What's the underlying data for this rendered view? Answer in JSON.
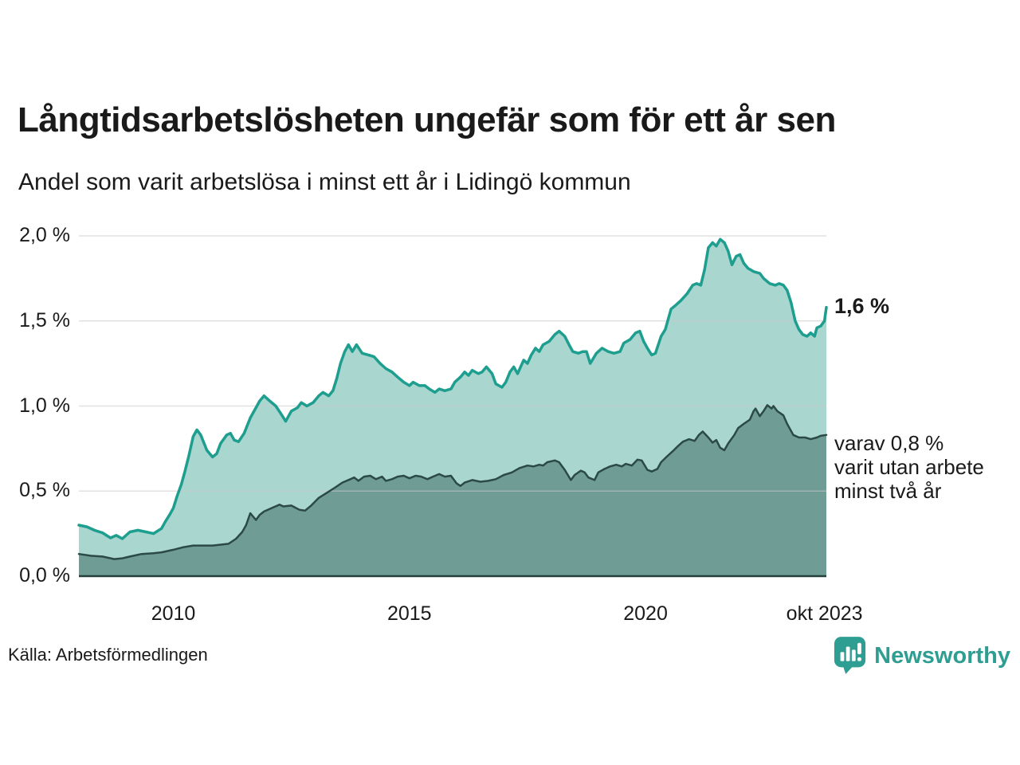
{
  "header": {
    "title": "Långtidsarbetslösheten ungefär som för ett år sen",
    "subtitle": "Andel som varit arbetslösa i minst ett år i Lidingö kommun"
  },
  "annotations": {
    "total_label": "1,6 %",
    "two_plus_lines": [
      "varav 0,8 %",
      "varit utan arbete",
      "minst två år"
    ]
  },
  "footer": {
    "source": "Källa: Arbetsförmedlingen",
    "brand": "Newsworthy"
  },
  "colors": {
    "text": "#1a1a1a",
    "grid": "#c9c9c9",
    "baseline": "#24403b",
    "brand_teal": "#2e9d92",
    "total_stroke": "#1d9e8e",
    "total_fill": "#a9d6ce",
    "twoplus_stroke": "#2b4a45",
    "twoplus_fill": "#6f9c95"
  },
  "chart_data": {
    "type": "area",
    "title": "Långtidsarbetslösheten ungefär som för ett år sen",
    "subtitle": "Andel som varit arbetslösa i minst ett år i Lidingö kommun",
    "source": "Källa: Arbetsförmedlingen",
    "x_domain": [
      2008.0,
      2023.83
    ],
    "y_domain": [
      0,
      2.0
    ],
    "grid": true,
    "legend_position": "right-annotations",
    "x_ticks": [
      {
        "t": 2010,
        "label": "2010"
      },
      {
        "t": 2015,
        "label": "2015"
      },
      {
        "t": 2020,
        "label": "2020"
      },
      {
        "t": 2023.79,
        "label": "okt 2023"
      }
    ],
    "y_ticks": [
      {
        "v": 0.0,
        "label": "0,0 %"
      },
      {
        "v": 0.5,
        "label": "0,5 %"
      },
      {
        "v": 1.0,
        "label": "1,0 %"
      },
      {
        "v": 1.5,
        "label": "1,5 %"
      },
      {
        "v": 2.0,
        "label": "2,0 %"
      }
    ],
    "series": [
      {
        "name": "Arbetslösa minst ett år",
        "end_label": "1,6 %",
        "end_value": 1.6,
        "points": [
          [
            2008.0,
            0.3
          ],
          [
            2008.17,
            0.29
          ],
          [
            2008.33,
            0.27
          ],
          [
            2008.5,
            0.255
          ],
          [
            2008.67,
            0.225
          ],
          [
            2008.79,
            0.24
          ],
          [
            2008.92,
            0.22
          ],
          [
            2009.08,
            0.26
          ],
          [
            2009.25,
            0.27
          ],
          [
            2009.42,
            0.26
          ],
          [
            2009.58,
            0.25
          ],
          [
            2009.75,
            0.28
          ],
          [
            2009.83,
            0.32
          ],
          [
            2009.92,
            0.36
          ],
          [
            2010.0,
            0.4
          ],
          [
            2010.08,
            0.47
          ],
          [
            2010.17,
            0.54
          ],
          [
            2010.25,
            0.62
          ],
          [
            2010.33,
            0.71
          ],
          [
            2010.42,
            0.82
          ],
          [
            2010.5,
            0.86
          ],
          [
            2010.58,
            0.83
          ],
          [
            2010.71,
            0.74
          ],
          [
            2010.83,
            0.7
          ],
          [
            2010.92,
            0.72
          ],
          [
            2011.0,
            0.78
          ],
          [
            2011.13,
            0.83
          ],
          [
            2011.21,
            0.84
          ],
          [
            2011.29,
            0.8
          ],
          [
            2011.38,
            0.79
          ],
          [
            2011.5,
            0.84
          ],
          [
            2011.63,
            0.93
          ],
          [
            2011.75,
            0.99
          ],
          [
            2011.83,
            1.03
          ],
          [
            2011.92,
            1.06
          ],
          [
            2012.04,
            1.03
          ],
          [
            2012.17,
            1.0
          ],
          [
            2012.29,
            0.95
          ],
          [
            2012.38,
            0.91
          ],
          [
            2012.5,
            0.97
          ],
          [
            2012.63,
            0.99
          ],
          [
            2012.71,
            1.02
          ],
          [
            2012.83,
            1.0
          ],
          [
            2012.96,
            1.02
          ],
          [
            2013.08,
            1.06
          ],
          [
            2013.17,
            1.08
          ],
          [
            2013.29,
            1.06
          ],
          [
            2013.38,
            1.09
          ],
          [
            2013.46,
            1.16
          ],
          [
            2013.54,
            1.25
          ],
          [
            2013.63,
            1.32
          ],
          [
            2013.71,
            1.36
          ],
          [
            2013.79,
            1.32
          ],
          [
            2013.88,
            1.36
          ],
          [
            2014.0,
            1.31
          ],
          [
            2014.13,
            1.3
          ],
          [
            2014.25,
            1.29
          ],
          [
            2014.38,
            1.25
          ],
          [
            2014.5,
            1.22
          ],
          [
            2014.63,
            1.2
          ],
          [
            2014.75,
            1.17
          ],
          [
            2014.88,
            1.14
          ],
          [
            2015.0,
            1.12
          ],
          [
            2015.08,
            1.14
          ],
          [
            2015.21,
            1.12
          ],
          [
            2015.33,
            1.12
          ],
          [
            2015.42,
            1.1
          ],
          [
            2015.54,
            1.08
          ],
          [
            2015.63,
            1.1
          ],
          [
            2015.75,
            1.09
          ],
          [
            2015.88,
            1.1
          ],
          [
            2015.96,
            1.14
          ],
          [
            2016.08,
            1.17
          ],
          [
            2016.17,
            1.2
          ],
          [
            2016.25,
            1.18
          ],
          [
            2016.33,
            1.21
          ],
          [
            2016.46,
            1.19
          ],
          [
            2016.54,
            1.2
          ],
          [
            2016.63,
            1.23
          ],
          [
            2016.75,
            1.19
          ],
          [
            2016.83,
            1.13
          ],
          [
            2016.96,
            1.11
          ],
          [
            2017.04,
            1.14
          ],
          [
            2017.13,
            1.2
          ],
          [
            2017.21,
            1.23
          ],
          [
            2017.29,
            1.19
          ],
          [
            2017.42,
            1.27
          ],
          [
            2017.5,
            1.25
          ],
          [
            2017.58,
            1.3
          ],
          [
            2017.67,
            1.34
          ],
          [
            2017.75,
            1.32
          ],
          [
            2017.83,
            1.36
          ],
          [
            2017.96,
            1.38
          ],
          [
            2018.08,
            1.42
          ],
          [
            2018.17,
            1.44
          ],
          [
            2018.29,
            1.41
          ],
          [
            2018.38,
            1.36
          ],
          [
            2018.46,
            1.32
          ],
          [
            2018.58,
            1.31
          ],
          [
            2018.67,
            1.32
          ],
          [
            2018.75,
            1.32
          ],
          [
            2018.83,
            1.25
          ],
          [
            2018.96,
            1.31
          ],
          [
            2019.08,
            1.34
          ],
          [
            2019.21,
            1.32
          ],
          [
            2019.33,
            1.31
          ],
          [
            2019.46,
            1.32
          ],
          [
            2019.54,
            1.37
          ],
          [
            2019.67,
            1.39
          ],
          [
            2019.79,
            1.43
          ],
          [
            2019.88,
            1.44
          ],
          [
            2019.96,
            1.38
          ],
          [
            2020.04,
            1.34
          ],
          [
            2020.13,
            1.3
          ],
          [
            2020.21,
            1.31
          ],
          [
            2020.33,
            1.41
          ],
          [
            2020.42,
            1.45
          ],
          [
            2020.54,
            1.57
          ],
          [
            2020.63,
            1.59
          ],
          [
            2020.75,
            1.62
          ],
          [
            2020.88,
            1.66
          ],
          [
            2021.0,
            1.71
          ],
          [
            2021.08,
            1.72
          ],
          [
            2021.17,
            1.71
          ],
          [
            2021.25,
            1.8
          ],
          [
            2021.33,
            1.93
          ],
          [
            2021.42,
            1.96
          ],
          [
            2021.5,
            1.94
          ],
          [
            2021.58,
            1.98
          ],
          [
            2021.67,
            1.96
          ],
          [
            2021.75,
            1.91
          ],
          [
            2021.83,
            1.83
          ],
          [
            2021.92,
            1.88
          ],
          [
            2022.0,
            1.89
          ],
          [
            2022.08,
            1.84
          ],
          [
            2022.17,
            1.81
          ],
          [
            2022.29,
            1.79
          ],
          [
            2022.42,
            1.78
          ],
          [
            2022.5,
            1.75
          ],
          [
            2022.63,
            1.72
          ],
          [
            2022.75,
            1.71
          ],
          [
            2022.83,
            1.72
          ],
          [
            2022.92,
            1.71
          ],
          [
            2023.0,
            1.68
          ],
          [
            2023.08,
            1.61
          ],
          [
            2023.17,
            1.5
          ],
          [
            2023.25,
            1.45
          ],
          [
            2023.33,
            1.42
          ],
          [
            2023.42,
            1.41
          ],
          [
            2023.5,
            1.43
          ],
          [
            2023.58,
            1.41
          ],
          [
            2023.63,
            1.46
          ],
          [
            2023.71,
            1.47
          ],
          [
            2023.79,
            1.5
          ],
          [
            2023.83,
            1.58
          ]
        ]
      },
      {
        "name": "varav arbetslösa minst två år",
        "end_label": "varav 0,8 % varit utan arbete minst två år",
        "end_value": 0.8,
        "points": [
          [
            2008.0,
            0.13
          ],
          [
            2008.25,
            0.12
          ],
          [
            2008.5,
            0.115
          ],
          [
            2008.75,
            0.1
          ],
          [
            2008.92,
            0.105
          ],
          [
            2009.08,
            0.115
          ],
          [
            2009.33,
            0.13
          ],
          [
            2009.58,
            0.135
          ],
          [
            2009.75,
            0.14
          ],
          [
            2010.0,
            0.155
          ],
          [
            2010.21,
            0.17
          ],
          [
            2010.42,
            0.18
          ],
          [
            2010.63,
            0.18
          ],
          [
            2010.83,
            0.18
          ],
          [
            2011.0,
            0.185
          ],
          [
            2011.17,
            0.19
          ],
          [
            2011.33,
            0.22
          ],
          [
            2011.46,
            0.26
          ],
          [
            2011.54,
            0.3
          ],
          [
            2011.63,
            0.37
          ],
          [
            2011.75,
            0.33
          ],
          [
            2011.83,
            0.36
          ],
          [
            2011.92,
            0.38
          ],
          [
            2012.08,
            0.4
          ],
          [
            2012.25,
            0.42
          ],
          [
            2012.33,
            0.41
          ],
          [
            2012.5,
            0.415
          ],
          [
            2012.67,
            0.39
          ],
          [
            2012.79,
            0.385
          ],
          [
            2012.92,
            0.415
          ],
          [
            2013.08,
            0.46
          ],
          [
            2013.25,
            0.49
          ],
          [
            2013.42,
            0.52
          ],
          [
            2013.58,
            0.55
          ],
          [
            2013.75,
            0.57
          ],
          [
            2013.83,
            0.58
          ],
          [
            2013.92,
            0.56
          ],
          [
            2014.04,
            0.585
          ],
          [
            2014.17,
            0.59
          ],
          [
            2014.29,
            0.57
          ],
          [
            2014.42,
            0.585
          ],
          [
            2014.5,
            0.56
          ],
          [
            2014.63,
            0.57
          ],
          [
            2014.75,
            0.585
          ],
          [
            2014.88,
            0.59
          ],
          [
            2015.0,
            0.575
          ],
          [
            2015.13,
            0.59
          ],
          [
            2015.25,
            0.585
          ],
          [
            2015.38,
            0.57
          ],
          [
            2015.5,
            0.585
          ],
          [
            2015.63,
            0.6
          ],
          [
            2015.75,
            0.585
          ],
          [
            2015.88,
            0.59
          ],
          [
            2016.0,
            0.545
          ],
          [
            2016.08,
            0.53
          ],
          [
            2016.17,
            0.55
          ],
          [
            2016.33,
            0.565
          ],
          [
            2016.5,
            0.555
          ],
          [
            2016.67,
            0.56
          ],
          [
            2016.83,
            0.57
          ],
          [
            2017.0,
            0.595
          ],
          [
            2017.17,
            0.61
          ],
          [
            2017.33,
            0.635
          ],
          [
            2017.5,
            0.65
          ],
          [
            2017.63,
            0.645
          ],
          [
            2017.75,
            0.655
          ],
          [
            2017.83,
            0.65
          ],
          [
            2017.92,
            0.67
          ],
          [
            2018.08,
            0.68
          ],
          [
            2018.17,
            0.67
          ],
          [
            2018.29,
            0.625
          ],
          [
            2018.42,
            0.565
          ],
          [
            2018.5,
            0.595
          ],
          [
            2018.63,
            0.62
          ],
          [
            2018.71,
            0.61
          ],
          [
            2018.79,
            0.58
          ],
          [
            2018.92,
            0.565
          ],
          [
            2019.0,
            0.61
          ],
          [
            2019.13,
            0.63
          ],
          [
            2019.25,
            0.645
          ],
          [
            2019.38,
            0.655
          ],
          [
            2019.5,
            0.645
          ],
          [
            2019.58,
            0.66
          ],
          [
            2019.71,
            0.65
          ],
          [
            2019.83,
            0.685
          ],
          [
            2019.92,
            0.68
          ],
          [
            2020.04,
            0.625
          ],
          [
            2020.13,
            0.615
          ],
          [
            2020.25,
            0.63
          ],
          [
            2020.33,
            0.67
          ],
          [
            2020.46,
            0.705
          ],
          [
            2020.58,
            0.735
          ],
          [
            2020.67,
            0.76
          ],
          [
            2020.79,
            0.79
          ],
          [
            2020.92,
            0.805
          ],
          [
            2021.04,
            0.795
          ],
          [
            2021.13,
            0.83
          ],
          [
            2021.21,
            0.85
          ],
          [
            2021.33,
            0.815
          ],
          [
            2021.42,
            0.785
          ],
          [
            2021.5,
            0.8
          ],
          [
            2021.58,
            0.755
          ],
          [
            2021.67,
            0.74
          ],
          [
            2021.75,
            0.78
          ],
          [
            2021.88,
            0.83
          ],
          [
            2021.96,
            0.87
          ],
          [
            2022.08,
            0.895
          ],
          [
            2022.21,
            0.92
          ],
          [
            2022.29,
            0.97
          ],
          [
            2022.33,
            0.985
          ],
          [
            2022.42,
            0.94
          ],
          [
            2022.5,
            0.97
          ],
          [
            2022.58,
            1.005
          ],
          [
            2022.67,
            0.985
          ],
          [
            2022.71,
            1.0
          ],
          [
            2022.79,
            0.97
          ],
          [
            2022.92,
            0.945
          ],
          [
            2023.0,
            0.895
          ],
          [
            2023.13,
            0.83
          ],
          [
            2023.25,
            0.815
          ],
          [
            2023.38,
            0.815
          ],
          [
            2023.5,
            0.805
          ],
          [
            2023.63,
            0.815
          ],
          [
            2023.71,
            0.825
          ],
          [
            2023.83,
            0.83
          ]
        ]
      }
    ]
  }
}
